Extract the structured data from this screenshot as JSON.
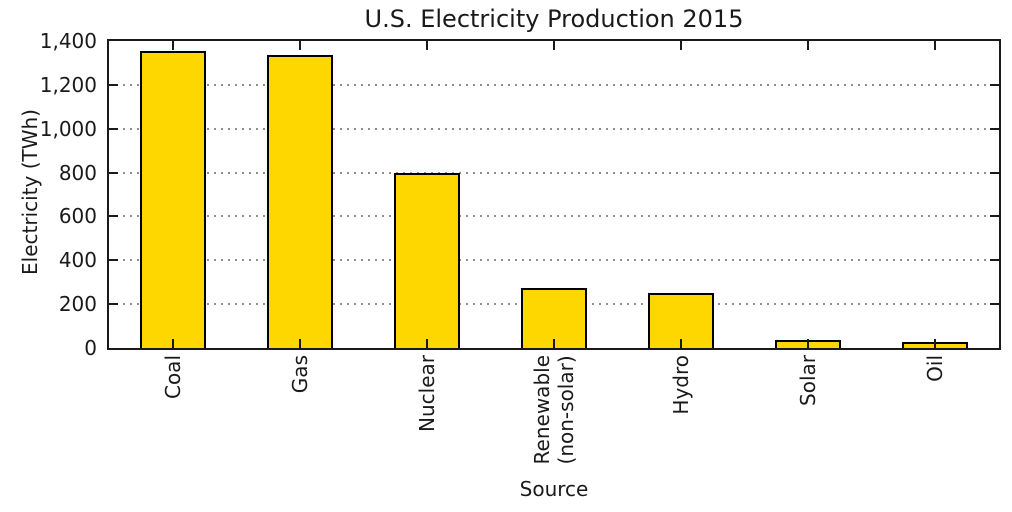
{
  "chart_data": {
    "type": "bar",
    "title": "U.S. Electricity Production 2015",
    "xlabel": "Source",
    "ylabel": "Electricity (TWh)",
    "categories": [
      "Coal",
      "Gas",
      "Nuclear",
      "Renewable\n(non-solar)",
      "Hydro",
      "Solar",
      "Oil"
    ],
    "values": [
      1355,
      1335,
      797,
      272,
      249,
      38,
      28
    ],
    "unit": "TWh",
    "ylim": [
      0,
      1400
    ],
    "yticks": [
      0,
      200,
      400,
      600,
      800,
      1000,
      1200,
      1400
    ],
    "ytick_labels": [
      "0",
      "200",
      "400",
      "600",
      "800",
      "1,000",
      "1,200",
      "1,400"
    ],
    "grid": "horizontal-dotted",
    "gridline_values": [
      200,
      400,
      600,
      800,
      1000,
      1200
    ],
    "legend": "none",
    "bar_color": "#FFD700",
    "bar_edge_color": "#000000",
    "tick_direction": "in",
    "xtick_label_rotation": 90
  }
}
